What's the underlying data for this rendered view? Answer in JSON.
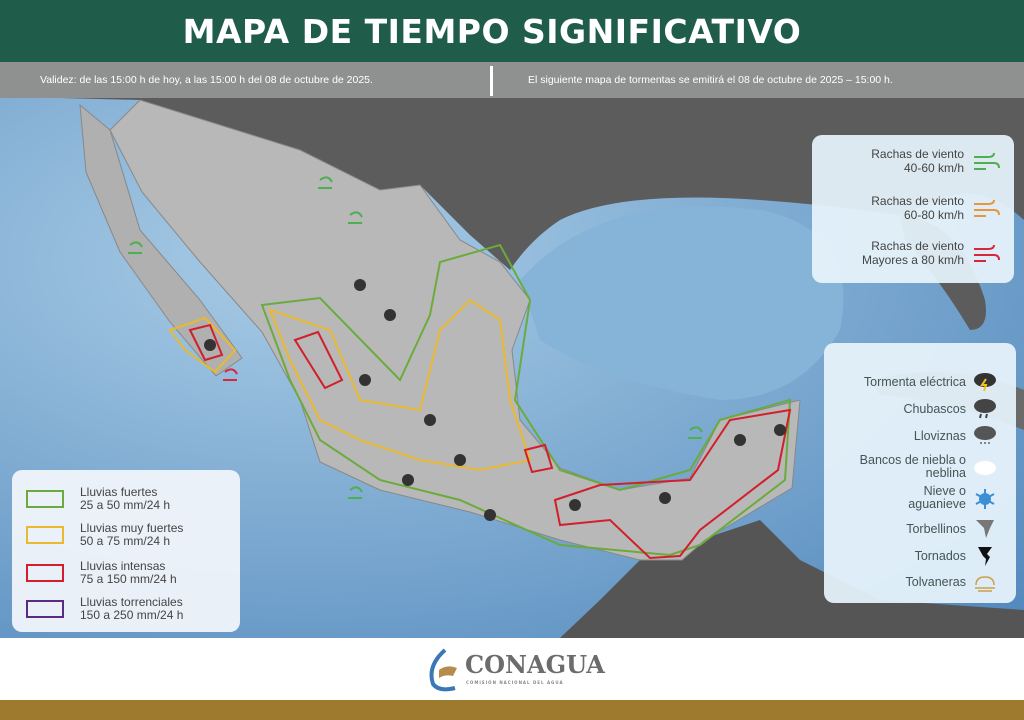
{
  "header": {
    "title": "MAPA DE TIEMPO SIGNIFICATIVO"
  },
  "info": {
    "validity": "Validez:  de las  15:00  h de hoy, a las 15:00  h del 08 de octubre de 2025.",
    "next_issue": "El siguiente  mapa de tormentas  se emitirá  el 08 de octubre de 2025 – 15:00  h."
  },
  "wind_legend": [
    {
      "line1": "Rachas de viento",
      "line2": "40-60 km/h",
      "color": "#4caf50"
    },
    {
      "line1": "Rachas de viento",
      "line2": "60-80 km/h",
      "color": "#e8963a"
    },
    {
      "line1": "Rachas de viento",
      "line2": "Mayores a 80 km/h",
      "color": "#d6283a"
    }
  ],
  "weather_legend": [
    {
      "label": "Tormenta eléctrica",
      "icon": "thunderstorm-icon"
    },
    {
      "label": "Chubascos",
      "icon": "showers-icon"
    },
    {
      "label": "Lloviznas",
      "icon": "drizzle-icon"
    },
    {
      "label": "Bancos de niebla o neblina",
      "icon": "fog-icon"
    },
    {
      "label": "Nieve o aguanieve",
      "icon": "snow-icon"
    },
    {
      "label": "Torbellinos",
      "icon": "whirlwind-icon"
    },
    {
      "label": "Tornados",
      "icon": "tornado-icon"
    },
    {
      "label": "Tolvaneras",
      "icon": "dust-storm-icon"
    }
  ],
  "rain_legend": [
    {
      "line1": "Lluvias fuertes",
      "line2": "25 a 50 mm/24 h",
      "color": "#6aab3c"
    },
    {
      "line1": "Lluvias muy fuertes",
      "line2": "50 a 75 mm/24 h",
      "color": "#e9b92f"
    },
    {
      "line1": "Lluvias intensas",
      "line2": "75 a 150 mm/24 h",
      "color": "#d21f2b"
    },
    {
      "line1": "Lluvias torrenciales",
      "line2": "150 a 250 mm/24 h",
      "color": "#5b2a86"
    }
  ],
  "footer": {
    "logo_text": "CONAGUA",
    "logo_subtitle": "COMISIÓN NACIONAL DEL AGUA"
  },
  "colors": {
    "header": "#1f5c4a",
    "info_bar": "#8f9090",
    "ocean": "#5e93c4",
    "land_mexico": "#b8b8b8",
    "land_other": "#5a5a5a",
    "gold": "#9e7a2f"
  }
}
